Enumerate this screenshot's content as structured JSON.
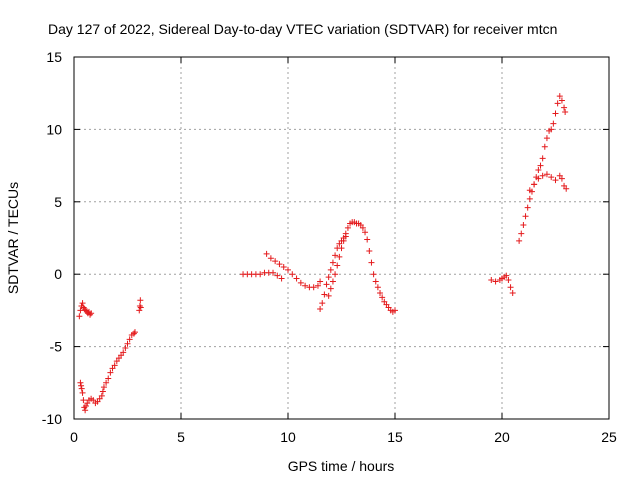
{
  "chart_data": {
    "type": "scatter",
    "title": "Day 127 of 2022, Sidereal Day-to-day VTEC variation (SDTVAR) for receiver mtcn",
    "xlabel": "GPS time / hours",
    "ylabel": "SDTVAR / TECUs",
    "xlim": [
      0,
      25
    ],
    "ylim": [
      -10,
      15
    ],
    "xticks": [
      0,
      5,
      10,
      15,
      20,
      25
    ],
    "yticks": [
      -10,
      -5,
      0,
      5,
      10,
      15
    ],
    "grid": true,
    "marker": "plus",
    "color": "#e41a1c",
    "series": [
      {
        "name": "SDTVAR",
        "segments": [
          [
            [
              0.25,
              -2.9
            ],
            [
              0.3,
              -2.5
            ],
            [
              0.35,
              -2.2
            ],
            [
              0.4,
              -2.0
            ],
            [
              0.45,
              -2.3
            ],
            [
              0.5,
              -2.4
            ],
            [
              0.55,
              -2.5
            ],
            [
              0.6,
              -2.6
            ],
            [
              0.65,
              -2.7
            ],
            [
              0.7,
              -2.6
            ],
            [
              0.75,
              -2.8
            ],
            [
              0.8,
              -2.7
            ]
          ],
          [
            [
              0.3,
              -7.5
            ],
            [
              0.33,
              -7.7
            ],
            [
              0.36,
              -7.9
            ],
            [
              0.4,
              -8.2
            ],
            [
              0.44,
              -8.7
            ],
            [
              0.48,
              -9.2
            ],
            [
              0.52,
              -9.4
            ],
            [
              0.56,
              -9.1
            ],
            [
              0.62,
              -8.9
            ],
            [
              0.7,
              -8.7
            ],
            [
              0.8,
              -8.6
            ],
            [
              0.9,
              -8.7
            ],
            [
              1.0,
              -8.9
            ],
            [
              1.1,
              -8.8
            ],
            [
              1.2,
              -8.6
            ],
            [
              1.3,
              -8.4
            ],
            [
              1.35,
              -8.1
            ],
            [
              1.4,
              -7.8
            ],
            [
              1.5,
              -7.5
            ],
            [
              1.6,
              -7.2
            ],
            [
              1.7,
              -6.8
            ],
            [
              1.8,
              -6.5
            ],
            [
              1.9,
              -6.3
            ],
            [
              2.0,
              -6.0
            ],
            [
              2.1,
              -5.8
            ],
            [
              2.2,
              -5.6
            ],
            [
              2.3,
              -5.4
            ],
            [
              2.4,
              -5.1
            ],
            [
              2.5,
              -4.8
            ],
            [
              2.6,
              -4.5
            ],
            [
              2.7,
              -4.2
            ],
            [
              2.8,
              -4.1
            ],
            [
              2.85,
              -4.0
            ]
          ],
          [
            [
              3.05,
              -2.5
            ],
            [
              3.08,
              -2.2
            ],
            [
              3.1,
              -1.8
            ],
            [
              3.12,
              -2.3
            ]
          ],
          [
            [
              7.9,
              0.0
            ],
            [
              8.1,
              0.0
            ],
            [
              8.3,
              0.0
            ],
            [
              8.5,
              0.0
            ],
            [
              8.7,
              0.0
            ],
            [
              8.9,
              0.1
            ],
            [
              9.1,
              0.1
            ],
            [
              9.3,
              0.1
            ],
            [
              9.5,
              -0.1
            ],
            [
              9.7,
              -0.3
            ]
          ],
          [
            [
              9.0,
              1.4
            ],
            [
              9.2,
              1.1
            ],
            [
              9.4,
              0.9
            ],
            [
              9.6,
              0.7
            ],
            [
              9.8,
              0.5
            ],
            [
              10.0,
              0.3
            ],
            [
              10.2,
              0.0
            ],
            [
              10.4,
              -0.3
            ],
            [
              10.6,
              -0.6
            ],
            [
              10.8,
              -0.8
            ],
            [
              11.0,
              -0.9
            ],
            [
              11.2,
              -0.9
            ],
            [
              11.4,
              -0.8
            ],
            [
              11.5,
              -0.5
            ]
          ],
          [
            [
              11.5,
              -2.4
            ],
            [
              11.6,
              -2.0
            ],
            [
              11.7,
              -1.4
            ],
            [
              11.8,
              -0.7
            ],
            [
              11.9,
              -0.2
            ],
            [
              12.0,
              0.3
            ],
            [
              12.1,
              0.8
            ],
            [
              12.2,
              1.3
            ],
            [
              12.3,
              1.8
            ],
            [
              12.4,
              2.1
            ],
            [
              12.5,
              2.3
            ],
            [
              12.6,
              2.5
            ],
            [
              12.7,
              2.8
            ],
            [
              12.8,
              3.2
            ],
            [
              12.9,
              3.5
            ],
            [
              13.0,
              3.6
            ],
            [
              13.1,
              3.6
            ],
            [
              13.2,
              3.5
            ],
            [
              13.3,
              3.5
            ],
            [
              13.4,
              3.4
            ],
            [
              13.5,
              3.2
            ],
            [
              13.6,
              2.9
            ],
            [
              13.7,
              2.4
            ],
            [
              13.8,
              1.6
            ],
            [
              13.9,
              0.8
            ],
            [
              14.0,
              0.0
            ],
            [
              14.1,
              -0.5
            ],
            [
              14.2,
              -0.9
            ],
            [
              14.3,
              -1.3
            ],
            [
              14.4,
              -1.6
            ],
            [
              14.5,
              -1.9
            ],
            [
              14.6,
              -2.1
            ],
            [
              14.7,
              -2.3
            ],
            [
              14.8,
              -2.5
            ],
            [
              14.9,
              -2.6
            ],
            [
              15.0,
              -2.5
            ]
          ],
          [
            [
              11.9,
              -1.5
            ],
            [
              12.0,
              -1.0
            ],
            [
              12.1,
              -0.5
            ],
            [
              12.2,
              0.0
            ],
            [
              12.3,
              0.6
            ],
            [
              12.4,
              1.2
            ],
            [
              12.5,
              1.8
            ],
            [
              12.6,
              2.3
            ],
            [
              12.7,
              2.6
            ]
          ],
          [
            [
              19.5,
              -0.4
            ],
            [
              19.7,
              -0.5
            ],
            [
              19.9,
              -0.4
            ],
            [
              20.0,
              -0.3
            ],
            [
              20.1,
              -0.2
            ],
            [
              20.2,
              -0.1
            ],
            [
              20.3,
              -0.4
            ],
            [
              20.4,
              -0.9
            ],
            [
              20.5,
              -1.3
            ]
          ],
          [
            [
              20.8,
              2.3
            ],
            [
              20.9,
              2.8
            ],
            [
              21.0,
              3.4
            ],
            [
              21.1,
              4.0
            ],
            [
              21.2,
              4.6
            ],
            [
              21.3,
              5.2
            ],
            [
              21.4,
              5.7
            ],
            [
              21.5,
              6.2
            ],
            [
              21.6,
              6.7
            ],
            [
              21.7,
              7.2
            ],
            [
              21.8,
              7.5
            ],
            [
              21.9,
              8.0
            ],
            [
              22.0,
              8.8
            ],
            [
              22.1,
              9.4
            ],
            [
              22.2,
              9.9
            ],
            [
              22.3,
              10.0
            ],
            [
              22.4,
              10.4
            ],
            [
              22.5,
              11.1
            ],
            [
              22.6,
              11.8
            ],
            [
              22.7,
              12.3
            ],
            [
              22.8,
              12.0
            ],
            [
              22.9,
              11.5
            ],
            [
              22.95,
              11.2
            ]
          ],
          [
            [
              21.3,
              5.8
            ],
            [
              21.5,
              6.2
            ],
            [
              21.7,
              6.6
            ],
            [
              21.9,
              6.8
            ],
            [
              22.1,
              6.9
            ],
            [
              22.3,
              6.7
            ],
            [
              22.5,
              6.5
            ],
            [
              22.7,
              6.8
            ],
            [
              22.8,
              6.6
            ],
            [
              22.9,
              6.1
            ],
            [
              23.0,
              5.9
            ]
          ]
        ]
      }
    ]
  }
}
